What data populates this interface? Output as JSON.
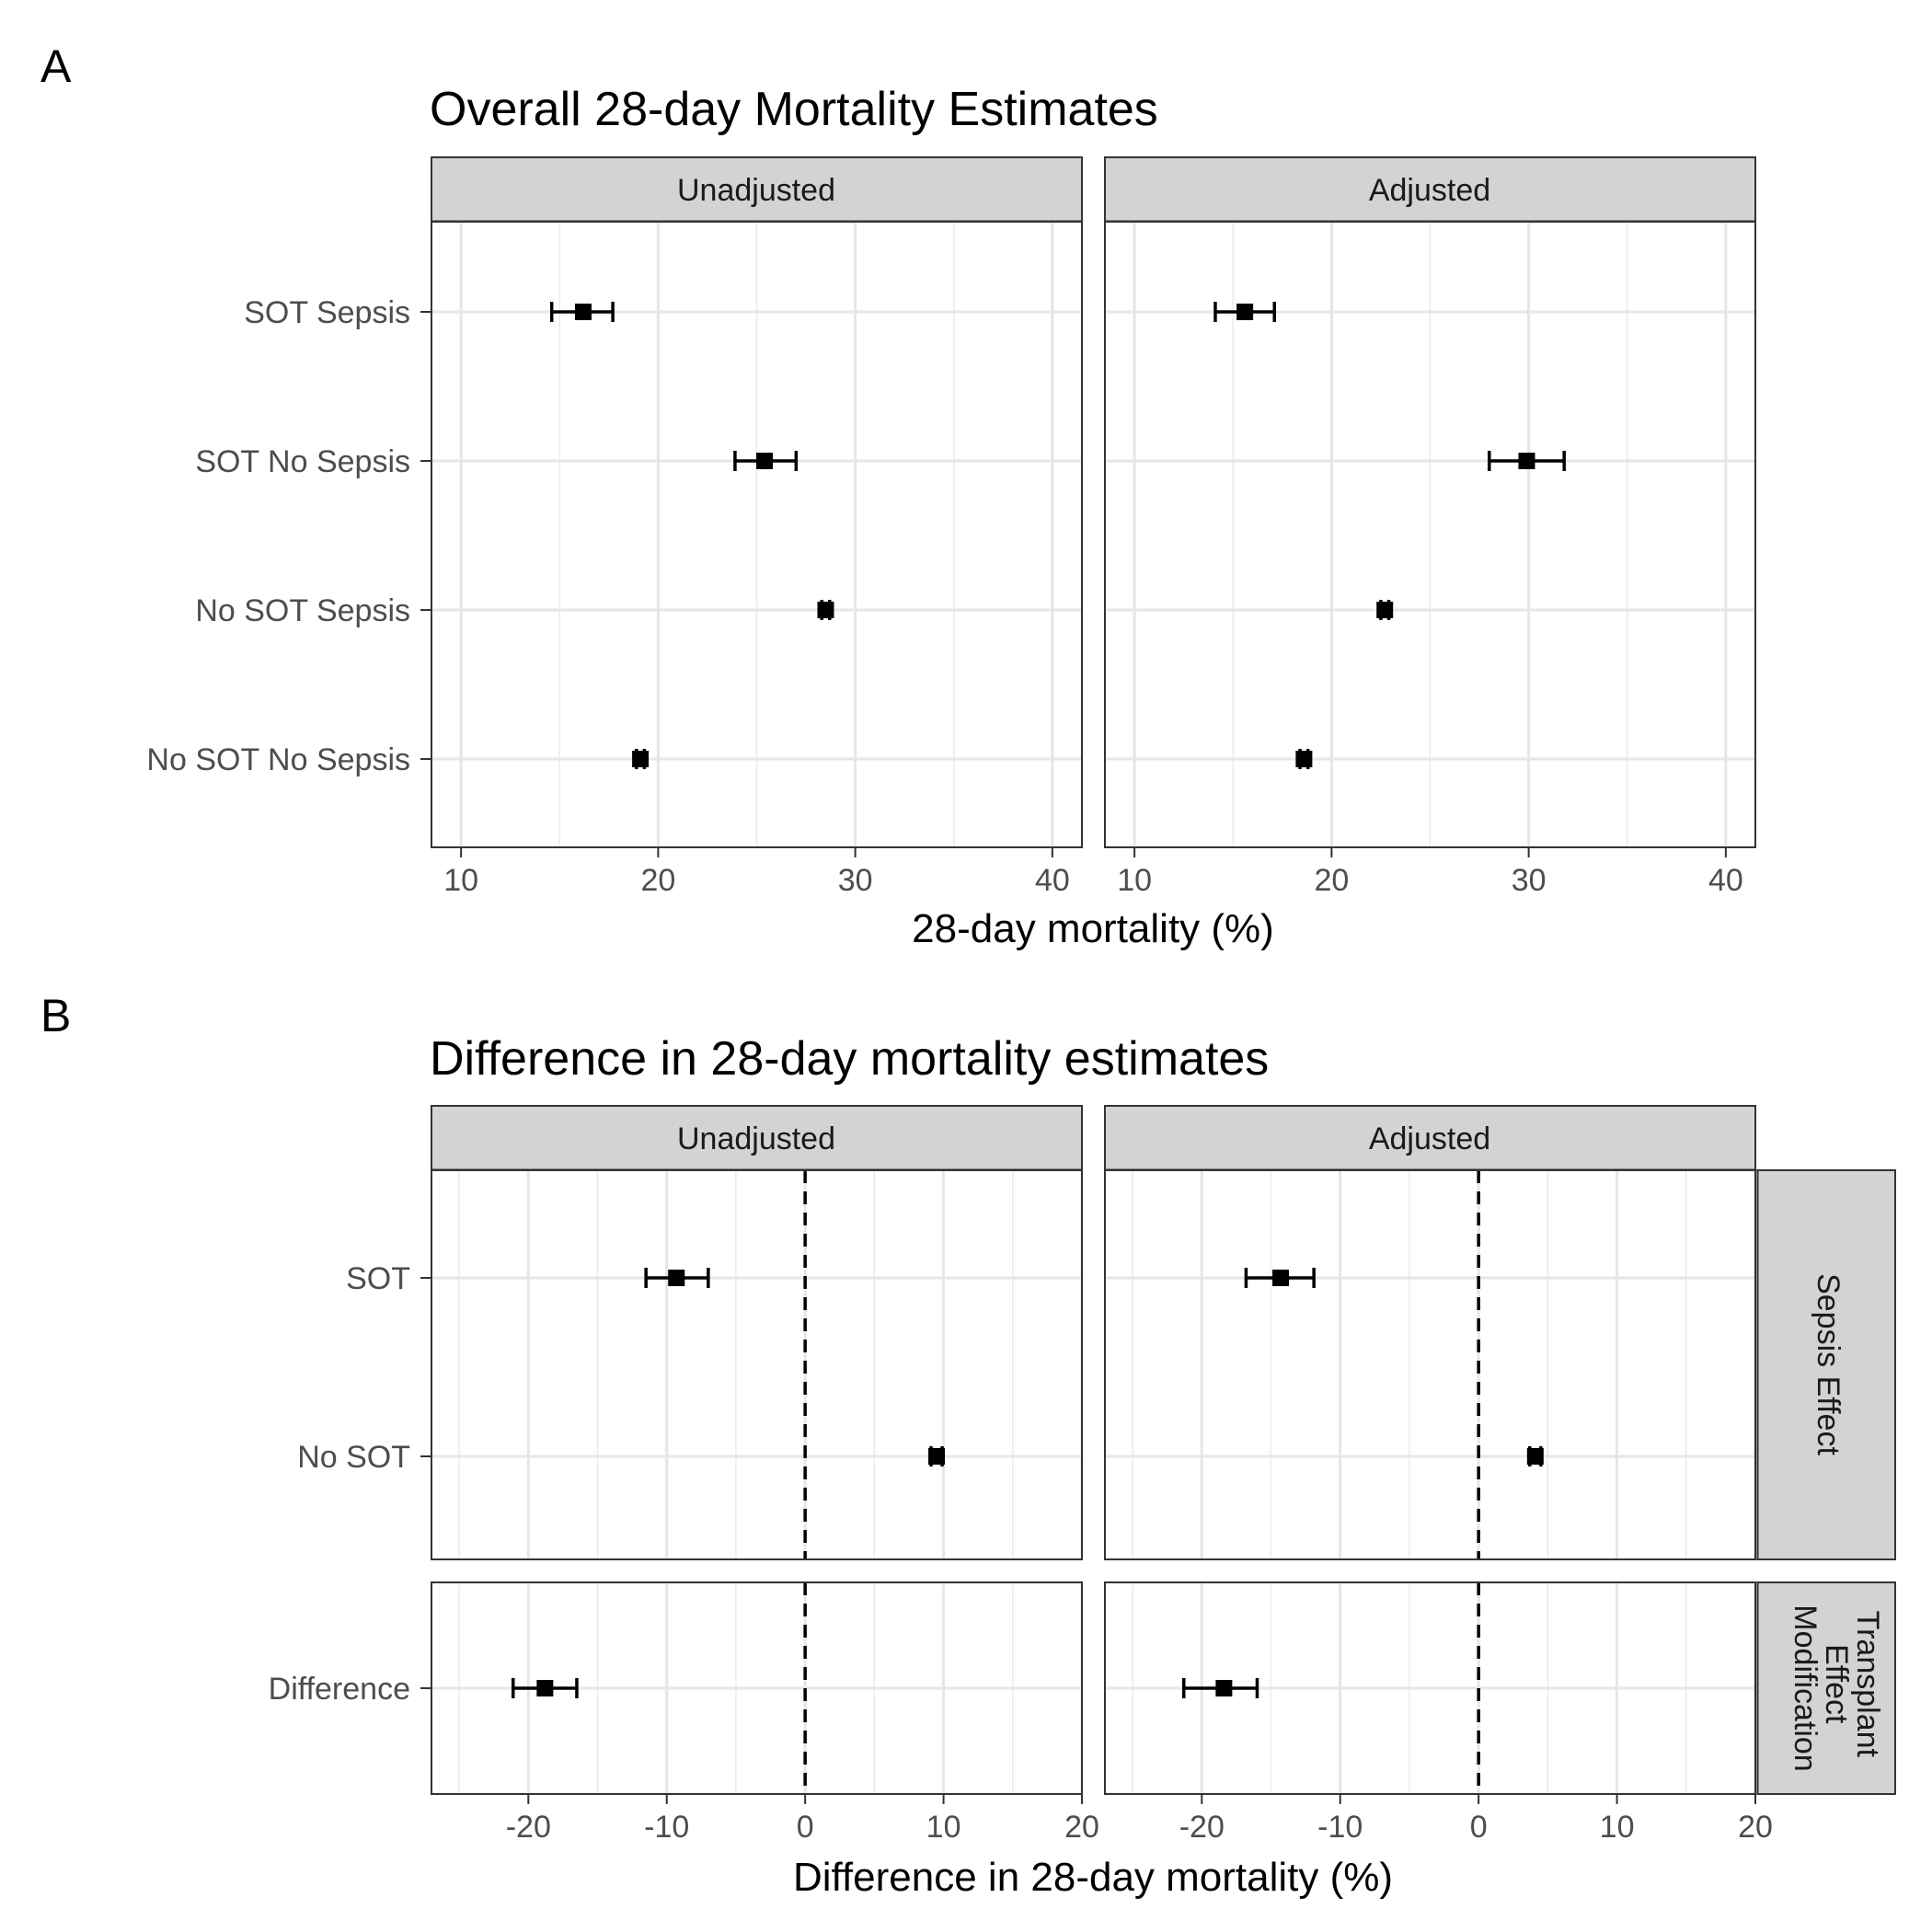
{
  "chart_data": [
    {
      "tag": "A",
      "type": "errorbar",
      "title": "Overall 28-day Mortality Estimates",
      "xlabel": "28-day mortality (%)",
      "xlim": [
        8.5,
        41.5
      ],
      "xticks": [
        10,
        20,
        30,
        40
      ],
      "grid": true,
      "panels": [
        {
          "name": "Unadjusted",
          "rows": [
            {
              "label": "SOT Sepsis",
              "estimate": 16.2,
              "lower": 14.6,
              "upper": 17.7
            },
            {
              "label": "SOT No Sepsis",
              "estimate": 25.4,
              "lower": 23.9,
              "upper": 27.0
            },
            {
              "label": "No SOT Sepsis",
              "estimate": 28.5,
              "lower": 28.3,
              "upper": 28.7
            },
            {
              "label": "No SOT No Sepsis",
              "estimate": 19.1,
              "lower": 18.9,
              "upper": 19.3
            }
          ]
        },
        {
          "name": "Adjusted",
          "rows": [
            {
              "label": "SOT Sepsis",
              "estimate": 15.6,
              "lower": 14.1,
              "upper": 17.1
            },
            {
              "label": "SOT No Sepsis",
              "estimate": 29.9,
              "lower": 28.0,
              "upper": 31.8
            },
            {
              "label": "No SOT Sepsis",
              "estimate": 22.7,
              "lower": 22.5,
              "upper": 22.9
            },
            {
              "label": "No SOT No Sepsis",
              "estimate": 18.6,
              "lower": 18.4,
              "upper": 18.8
            }
          ]
        }
      ]
    },
    {
      "tag": "B",
      "type": "errorbar",
      "title": "Difference in 28-day mortality estimates",
      "xlabel": "Difference in 28-day mortality (%)",
      "xlim": [
        -27,
        20
      ],
      "xticks": [
        -20,
        -10,
        0,
        10,
        20
      ],
      "reference_line": 0,
      "grid": true,
      "columns": [
        "Unadjusted",
        "Adjusted"
      ],
      "row_strips": [
        "Sepsis Effect",
        "Transplant Effect Modification"
      ],
      "panels": [
        {
          "column": "Unadjusted",
          "row": "Sepsis Effect",
          "rows": [
            {
              "label": "SOT",
              "estimate": -9.3,
              "lower": -11.5,
              "upper": -7.0
            },
            {
              "label": "No SOT",
              "estimate": 9.5,
              "lower": 9.1,
              "upper": 9.9
            }
          ]
        },
        {
          "column": "Adjusted",
          "row": "Sepsis Effect",
          "rows": [
            {
              "label": "SOT",
              "estimate": -14.3,
              "lower": -16.8,
              "upper": -11.9
            },
            {
              "label": "No SOT",
              "estimate": 4.1,
              "lower": 3.7,
              "upper": 4.5
            }
          ]
        },
        {
          "column": "Unadjusted",
          "row": "Transplant Effect Modification",
          "rows": [
            {
              "label": "Difference",
              "estimate": -18.8,
              "lower": -21.1,
              "upper": -16.5
            }
          ]
        },
        {
          "column": "Adjusted",
          "row": "Transplant Effect Modification",
          "rows": [
            {
              "label": "Difference",
              "estimate": -18.4,
              "lower": -21.3,
              "upper": -16.0
            }
          ]
        }
      ]
    }
  ]
}
